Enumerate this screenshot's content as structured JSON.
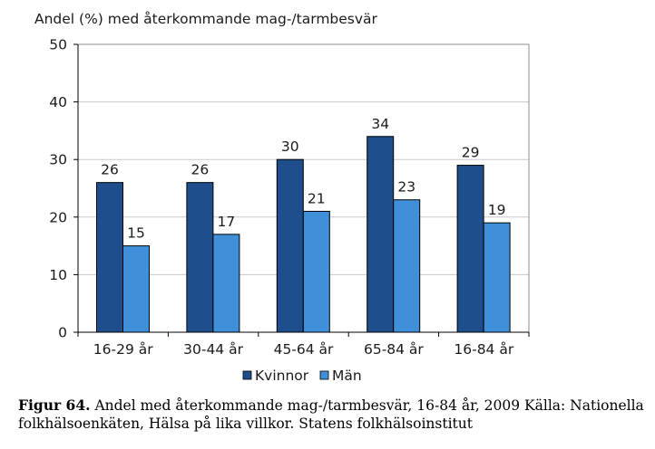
{
  "chart_data": {
    "type": "bar",
    "ylabel": "Andel (%) med återkommande mag-/tarmbesvär",
    "categories": [
      "16-29 år",
      "30-44 år",
      "45-64 år",
      "65-84 år",
      "16-84 år"
    ],
    "series": [
      {
        "name": "Kvinnor",
        "values": [
          26,
          26,
          30,
          34,
          29
        ],
        "color": "#1f4e8c"
      },
      {
        "name": "Män",
        "values": [
          15,
          17,
          21,
          23,
          19
        ],
        "color": "#3f90d8"
      }
    ],
    "ylim": [
      0,
      50
    ],
    "yticks": [
      0,
      10,
      20,
      30,
      40,
      50
    ],
    "grid": true,
    "legend_position": "bottom-center",
    "plot_background": "#ffffff",
    "gridline_color": "#c8c8c8"
  },
  "caption": {
    "label": "Figur 64.",
    "text": " Andel med återkommande mag-/tarmbesvär, 16-84 år, 2009 Källa: Nationella folkhälsoenkäten, Hälsa på lika villkor. Statens folkhälsoinstitut"
  }
}
